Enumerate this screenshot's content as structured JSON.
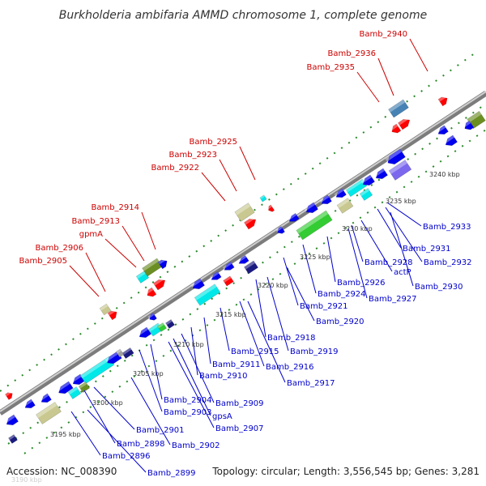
{
  "title": "Burkholderia ambifaria AMMD chromosome 1, complete genome",
  "footer": {
    "accession": "Accession: NC_008390",
    "summary": "Topology: circular; Length: 3,556,545 bp; Genes: 3,281"
  },
  "colors": {
    "plus_label": "#cc0000",
    "minus_label": "#0000cc",
    "backbone": "#909090",
    "tick": "#227722",
    "gene_blue": "#0000ee",
    "gene_red": "#ff0000",
    "gene_cyan": "#00e8e8",
    "gene_green": "#33cc33",
    "gene_olive": "#6b8e23",
    "gene_khaki": "#c8c890",
    "gene_gray": "#a0a0a0",
    "gene_steel": "#4682b4",
    "gene_purple": "#7b68ee",
    "gene_navy": "#1a1a80"
  },
  "ticks": [
    "3195 kbp",
    "3200 kbp",
    "3205 kbp",
    "3210 kbp",
    "3215 kbp",
    "3220 kbp",
    "3225 kbp",
    "3230 kbp",
    "3235 kbp",
    "3240 kbp",
    "3190 kbp"
  ],
  "upper_labels": [
    "Bamb_2940",
    "Bamb_2936",
    "Bamb_2935",
    "Bamb_2925",
    "Bamb_2923",
    "Bamb_2922",
    "Bamb_2914",
    "Bamb_2913",
    "gpmA",
    "Bamb_2906",
    "Bamb_2905"
  ],
  "lower_labels": [
    "Bamb_2933",
    "Bamb_2931",
    "Bamb_2932",
    "Bamb_2928",
    "actP",
    "Bamb_2930",
    "Bamb_2926",
    "Bamb_2927",
    "Bamb_2924",
    "Bamb_2921",
    "Bamb_2920",
    "Bamb_2918",
    "Bamb_2919",
    "Bamb_2915",
    "Bamb_2916",
    "Bamb_2911",
    "Bamb_2910",
    "Bamb_2917",
    "Bamb_2904",
    "Bamb_2909",
    "Bamb_2903",
    "gpsA",
    "Bamb_2907",
    "Bamb_2901",
    "Bamb_2902",
    "Bamb_2898",
    "Bamb_2896",
    "Bamb_2899"
  ]
}
